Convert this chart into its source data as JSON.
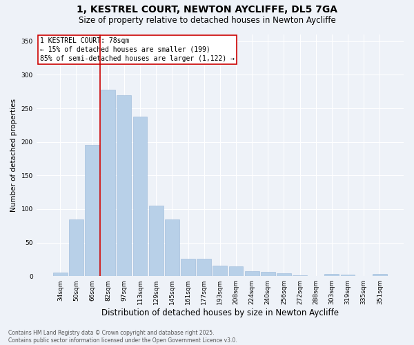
{
  "title": "1, KESTREL COURT, NEWTON AYCLIFFE, DL5 7GA",
  "subtitle": "Size of property relative to detached houses in Newton Aycliffe",
  "xlabel": "Distribution of detached houses by size in Newton Aycliffe",
  "ylabel": "Number of detached properties",
  "categories": [
    "34sqm",
    "50sqm",
    "66sqm",
    "82sqm",
    "97sqm",
    "113sqm",
    "129sqm",
    "145sqm",
    "161sqm",
    "177sqm",
    "193sqm",
    "208sqm",
    "224sqm",
    "240sqm",
    "256sqm",
    "272sqm",
    "288sqm",
    "303sqm",
    "319sqm",
    "335sqm",
    "351sqm"
  ],
  "values": [
    5,
    84,
    196,
    278,
    270,
    238,
    105,
    84,
    26,
    26,
    16,
    15,
    7,
    6,
    4,
    1,
    0,
    3,
    2,
    0,
    3
  ],
  "bar_color": "#b8d0e8",
  "bar_edge_color": "#9ab8d8",
  "vline_x": 2.5,
  "vline_color": "#cc0000",
  "annotation_text": "1 KESTREL COURT: 78sqm\n← 15% of detached houses are smaller (199)\n85% of semi-detached houses are larger (1,122) →",
  "annotation_box_color": "#ffffff",
  "annotation_box_edge_color": "#cc0000",
  "ylim": [
    0,
    360
  ],
  "yticks": [
    0,
    50,
    100,
    150,
    200,
    250,
    300,
    350
  ],
  "background_color": "#eef2f8",
  "footer_text": "Contains HM Land Registry data © Crown copyright and database right 2025.\nContains public sector information licensed under the Open Government Licence v3.0.",
  "title_fontsize": 10,
  "subtitle_fontsize": 8.5,
  "xlabel_fontsize": 8.5,
  "ylabel_fontsize": 7.5,
  "tick_fontsize": 6.5,
  "annotation_fontsize": 7,
  "footer_fontsize": 5.5
}
